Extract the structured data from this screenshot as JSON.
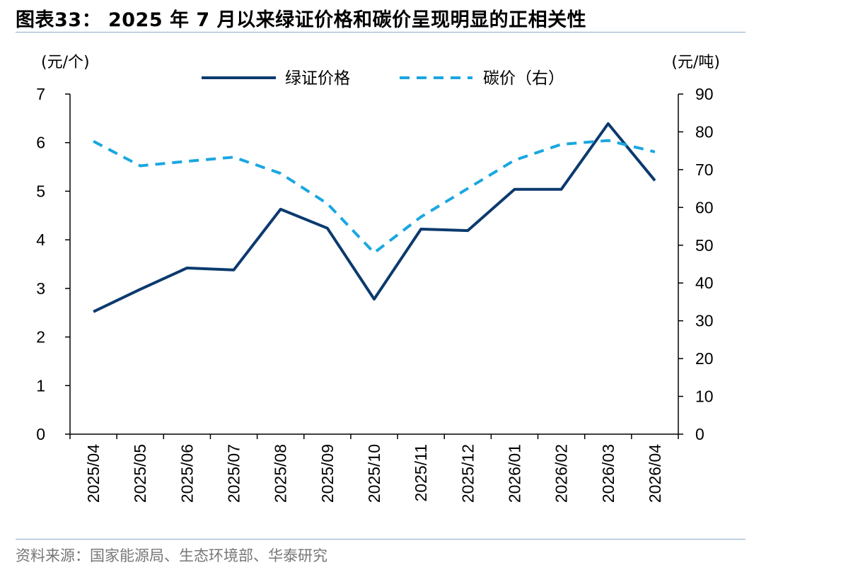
{
  "title": "图表33：  2025 年 7 月以来绿证价格和碳价呈现明显的正相关性",
  "source": "资料来源：国家能源局、生态环境部、华泰研究",
  "chart_data": {
    "type": "line",
    "categories": [
      "2025/04",
      "2025/05",
      "2025/06",
      "2025/07",
      "2025/08",
      "2025/09",
      "2025/10",
      "2025/11",
      "2025/12",
      "2026/01",
      "2026/02",
      "2026/03",
      "2026/04"
    ],
    "y_left": {
      "unit": "(元/个)",
      "range": [
        0,
        7
      ],
      "ticks": [
        "0",
        "1",
        "2",
        "3",
        "4",
        "5",
        "6",
        "7"
      ]
    },
    "y_right": {
      "unit": "(元/吨)",
      "range": [
        0,
        90
      ],
      "ticks": [
        "0",
        "10",
        "20",
        "30",
        "40",
        "50",
        "60",
        "70",
        "80",
        "90"
      ]
    },
    "series": [
      {
        "name": "绿证价格",
        "axis": "left",
        "style": "solid",
        "color": "#0b3a6e",
        "values": [
          2.52,
          2.98,
          3.42,
          3.38,
          4.63,
          4.24,
          2.78,
          4.22,
          4.19,
          5.04,
          5.04,
          6.39,
          5.22
        ]
      },
      {
        "name": "碳价（右）",
        "axis": "right",
        "style": "dashed",
        "color": "#1aa7e0",
        "values": [
          77.5,
          71.0,
          72.2,
          73.3,
          69.0,
          61.0,
          48.0,
          57.5,
          65.0,
          72.5,
          76.7,
          77.7,
          74.7
        ]
      }
    ],
    "grid": false,
    "legend": "top-center"
  }
}
